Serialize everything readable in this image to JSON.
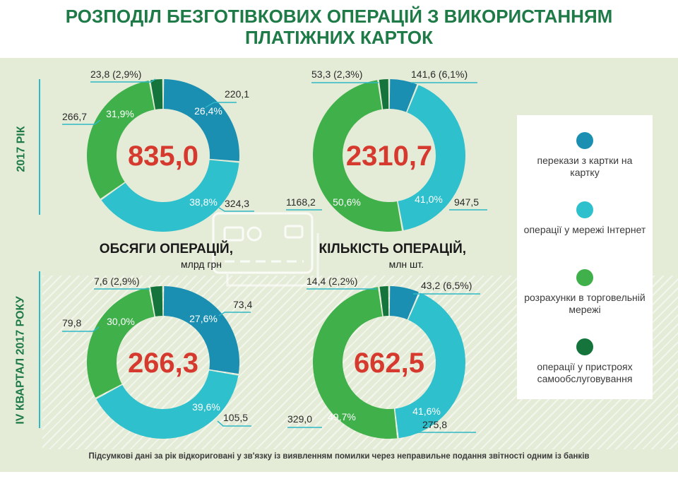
{
  "title": {
    "line1": "РОЗПОДІЛ БЕЗГОТІВКОВИХ ОПЕРАЦІЙ З ВИКОРИСТАННЯМ",
    "line2": "ПЛАТІЖНИХ КАРТОК"
  },
  "row_labels": {
    "year": "2017 РІК",
    "quarter": "IV КВАРТАЛ 2017 РОКУ"
  },
  "sections": {
    "volume": {
      "title": "ОБСЯГИ ОПЕРАЦІЙ,",
      "unit": "млрд грн"
    },
    "count": {
      "title": "КІЛЬКІСТЬ ОПЕРАЦІЙ,",
      "unit": "млн шт."
    }
  },
  "legend": [
    {
      "label": "перекази з картки на картку",
      "color": "#1b8fb2"
    },
    {
      "label": "операції у мережі Інтернет",
      "color": "#2ec0cc"
    },
    {
      "label": "розрахунки в торговельній мережі",
      "color": "#3fb04a"
    },
    {
      "label": "операції у пристроях самообслуговування",
      "color": "#15743c"
    }
  ],
  "footnote": "Підсумкові дані за рік відкориговані у зв'язку із виявленням помилки через неправильне подання звітності одним із банків",
  "colors": {
    "title_green": "#1e7a46",
    "total_red": "#d63a2f",
    "panel_bg": "#e4ecd8",
    "leader_line": "#2fb8c6"
  },
  "chart_data": [
    {
      "type": "pie",
      "donut": true,
      "row": "2017 РІК",
      "section": "ОБСЯГИ ОПЕРАЦІЙ,",
      "total": "835,0",
      "categories": [
        "перекази з картки на картку",
        "операції у мережі Інтернет",
        "розрахунки в торговельній мережі",
        "операції у пристроях самообслуговування"
      ],
      "values": [
        220.1,
        324.3,
        266.7,
        23.8
      ],
      "percent_labels": [
        "26,4%",
        "38,8%",
        "31,9%",
        ""
      ],
      "value_labels": [
        "220,1",
        "324,3",
        "266,7",
        "23,8 (2,9%)"
      ]
    },
    {
      "type": "pie",
      "donut": true,
      "row": "2017 РІК",
      "section": "КІЛЬКІСТЬ ОПЕРАЦІЙ,",
      "total": "2310,7",
      "categories": [
        "перекази з картки на картку",
        "операції у мережі Інтернет",
        "розрахунки в торговельній мережі",
        "операції у пристроях самообслуговування"
      ],
      "values": [
        141.6,
        947.5,
        1168.2,
        53.3
      ],
      "percent_labels": [
        "",
        "41,0%",
        "50,6%",
        ""
      ],
      "value_labels": [
        "141,6 (6,1%)",
        "947,5",
        "1168,2",
        "53,3 (2,3%)"
      ]
    },
    {
      "type": "pie",
      "donut": true,
      "row": "IV КВАРТАЛ 2017 РОКУ",
      "section": "ОБСЯГИ ОПЕРАЦІЙ,",
      "total": "266,3",
      "categories": [
        "перекази з картки на картку",
        "операції у мережі Інтернет",
        "розрахунки в торговельній мережі",
        "операції у пристроях самообслуговування"
      ],
      "values": [
        73.4,
        105.5,
        79.8,
        7.6
      ],
      "percent_labels": [
        "27,6%",
        "39,6%",
        "30,0%",
        ""
      ],
      "value_labels": [
        "73,4",
        "105,5",
        "79,8",
        "7,6 (2,9%)"
      ]
    },
    {
      "type": "pie",
      "donut": true,
      "row": "IV КВАРТАЛ 2017 РОКУ",
      "section": "КІЛЬКІСТЬ ОПЕРАЦІЙ,",
      "total": "662,5",
      "categories": [
        "перекази з картки на картку",
        "операції у мережі Інтернет",
        "розрахунки в торговельній мережі",
        "операції у пристроях самообслуговування"
      ],
      "values": [
        43.2,
        275.8,
        329.0,
        14.4
      ],
      "percent_labels": [
        "",
        "41,6%",
        "49,7%",
        ""
      ],
      "value_labels": [
        "43,2 (6,5%)",
        "275,8",
        "329,0",
        "14,4 (2,2%)"
      ]
    }
  ]
}
